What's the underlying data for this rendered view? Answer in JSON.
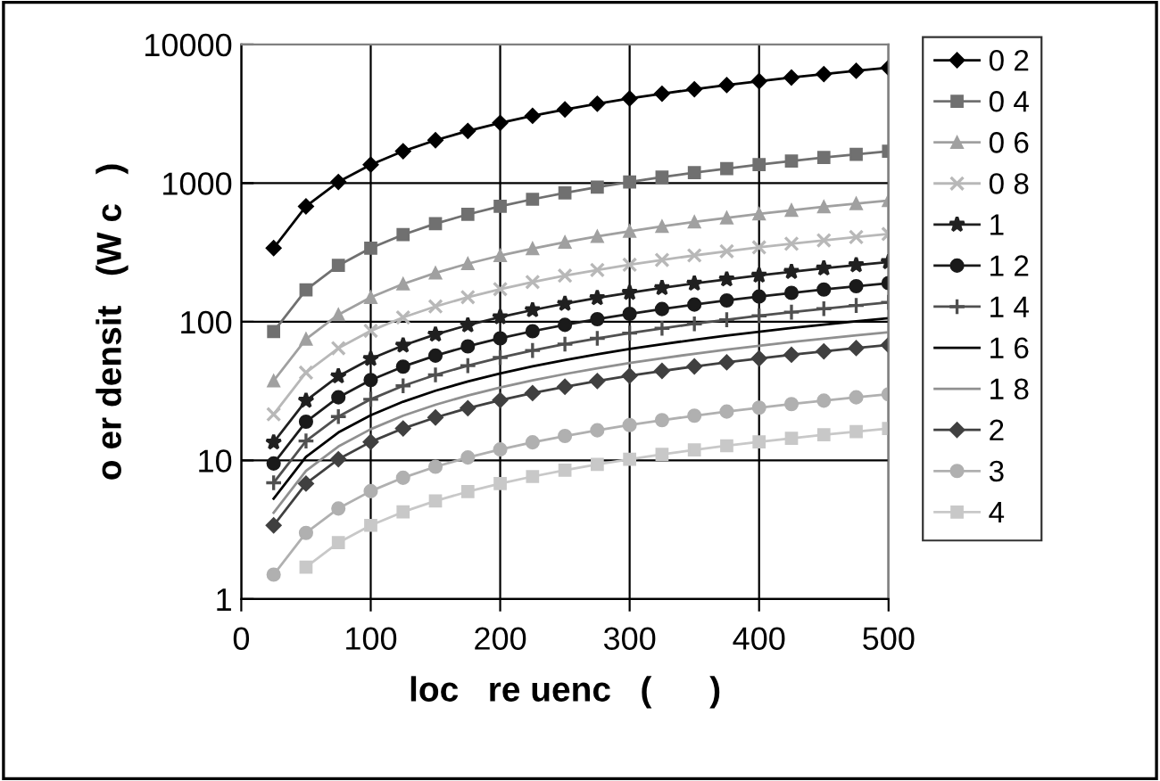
{
  "chart_data": {
    "type": "line",
    "xlabel": "loc   re uenc   (      )",
    "ylabel": "o er densit   (W c   )",
    "x": [
      25,
      50,
      75,
      100,
      125,
      150,
      175,
      200,
      225,
      250,
      275,
      300,
      325,
      350,
      375,
      400,
      425,
      450,
      475,
      500
    ],
    "xlim": [
      0,
      500
    ],
    "xticks": [
      0,
      100,
      200,
      300,
      400,
      500
    ],
    "ylim": [
      1,
      10000
    ],
    "yticks": [
      1,
      10,
      100,
      1000,
      10000
    ],
    "log": "y",
    "grid": true,
    "legend": "right",
    "series": [
      {
        "name": "0 2",
        "color": "#000000",
        "marker": "diamond",
        "values": [
          340,
          680,
          1020,
          1360,
          1700,
          2040,
          2380,
          2720,
          3060,
          3400,
          3740,
          4080,
          4420,
          4760,
          5100,
          5440,
          5780,
          6120,
          6460,
          6800
        ]
      },
      {
        "name": "0 4",
        "color": "#707070",
        "marker": "square",
        "values": [
          85,
          170,
          255,
          340,
          425,
          510,
          595,
          680,
          765,
          850,
          935,
          1020,
          1105,
          1190,
          1275,
          1360,
          1445,
          1530,
          1615,
          1700
        ]
      },
      {
        "name": "0 6",
        "color": "#a0a0a0",
        "marker": "triangle",
        "values": [
          37.5,
          75,
          112.5,
          150,
          187.5,
          225,
          262.5,
          300,
          337.5,
          375,
          412.5,
          450,
          487.5,
          525,
          562.5,
          600,
          637.5,
          675,
          712.5,
          750
        ]
      },
      {
        "name": "0 8",
        "color": "#b8b8b8",
        "marker": "cross",
        "values": [
          21.5,
          43,
          64.5,
          86,
          107.5,
          129,
          150.5,
          172,
          193.5,
          215,
          236.5,
          258,
          279.5,
          301,
          322.5,
          344,
          365.5,
          387,
          408.5,
          430
        ]
      },
      {
        "name": "1",
        "color": "#202020",
        "marker": "star",
        "values": [
          13.5,
          27,
          40.5,
          54,
          67.5,
          81,
          94.5,
          108,
          121.5,
          135,
          148.5,
          162,
          175.5,
          189,
          202.5,
          216,
          229.5,
          243,
          256.5,
          270
        ]
      },
      {
        "name": "1 2",
        "color": "#1a1a1a",
        "marker": "circle",
        "values": [
          9.5,
          19,
          28.5,
          38,
          47.5,
          57,
          66.5,
          76,
          85.5,
          95,
          104.5,
          114,
          123.5,
          133,
          142.5,
          152,
          161.5,
          171,
          180.5,
          190
        ]
      },
      {
        "name": "1 4",
        "color": "#505050",
        "marker": "plus",
        "values": [
          6.9,
          13.8,
          20.7,
          27.6,
          34.5,
          41.4,
          48.3,
          55.2,
          62.1,
          69,
          75.9,
          82.8,
          89.7,
          96.6,
          103.5,
          110.4,
          117.3,
          124.2,
          131.1,
          138
        ]
      },
      {
        "name": "1 6",
        "color": "#000000",
        "marker": "none",
        "values": [
          5.3,
          10.6,
          15.9,
          21.2,
          26.5,
          31.8,
          37.1,
          42.4,
          47.7,
          53,
          58.3,
          63.6,
          68.9,
          74.2,
          79.5,
          84.8,
          90.1,
          95.4,
          100.7,
          106
        ]
      },
      {
        "name": "1 8",
        "color": "#909090",
        "marker": "none",
        "values": [
          4.2,
          8.4,
          12.6,
          16.8,
          21,
          25.2,
          29.4,
          33.6,
          37.8,
          42,
          46.2,
          50.4,
          54.6,
          58.8,
          63,
          67.2,
          71.4,
          75.6,
          79.8,
          84
        ]
      },
      {
        "name": "2",
        "color": "#404040",
        "marker": "diamond",
        "values": [
          3.4,
          6.8,
          10.2,
          13.6,
          17,
          20.4,
          23.8,
          27.2,
          30.6,
          34,
          37.4,
          40.8,
          44.2,
          47.6,
          51,
          54.4,
          57.8,
          61.2,
          64.6,
          68
        ]
      },
      {
        "name": "3",
        "color": "#b0b0b0",
        "marker": "circle",
        "values": [
          1.5,
          3,
          4.5,
          6,
          7.5,
          9,
          10.5,
          12,
          13.5,
          15,
          16.5,
          18,
          19.5,
          21,
          22.5,
          24,
          25.5,
          27,
          28.5,
          30
        ]
      },
      {
        "name": "4",
        "color": "#c8c8c8",
        "marker": "square",
        "values": [
          null,
          1.7,
          2.55,
          3.4,
          4.25,
          5.1,
          5.95,
          6.8,
          7.65,
          8.5,
          9.35,
          10.2,
          11.05,
          11.9,
          12.75,
          13.6,
          14.45,
          15.3,
          16.15,
          17
        ]
      }
    ]
  }
}
